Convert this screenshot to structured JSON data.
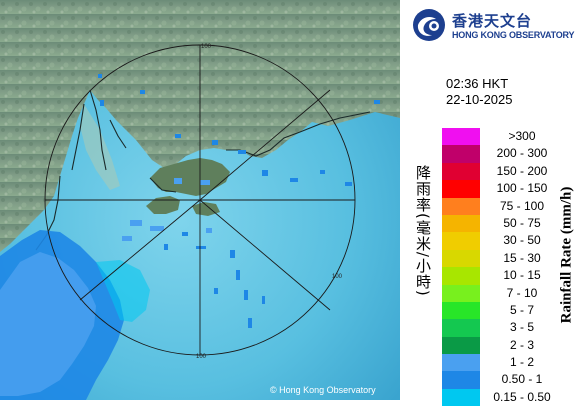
{
  "header": {
    "logo_icon": "hko-logo-icon",
    "org_name_cn": "香港天文台",
    "org_name_en": "HONG KONG OBSERVATORY"
  },
  "time": "02:36 HKT",
  "date": "22-10-2025",
  "legend": {
    "title_cn": "降雨率(毫米/小時)",
    "title_en": "Rainfall Rate (mm/h)",
    "items": [
      {
        "label": ">300",
        "color": "#f00ff0"
      },
      {
        "label": "200 - 300",
        "color": "#c0006a"
      },
      {
        "label": "150 - 200",
        "color": "#e00032"
      },
      {
        "label": "100 - 150",
        "color": "#ff0000"
      },
      {
        "label": "75 - 100",
        "color": "#ff7f1e"
      },
      {
        "label": "50 - 75",
        "color": "#f5b400"
      },
      {
        "label": "30 - 50",
        "color": "#f0cd00"
      },
      {
        "label": "15 - 30",
        "color": "#d8d800"
      },
      {
        "label": "10 - 15",
        "color": "#a8e600"
      },
      {
        "label": "7 - 10",
        "color": "#78f01e"
      },
      {
        "label": "5 - 7",
        "color": "#28e628"
      },
      {
        "label": "3 - 5",
        "color": "#14c850"
      },
      {
        "label": "2 - 3",
        "color": "#0a9a46"
      },
      {
        "label": "1 - 2",
        "color": "#4aa0f0"
      },
      {
        "label": "0.50 - 1",
        "color": "#1e87e6"
      },
      {
        "label": "0.15 - 0.50",
        "color": "#00c8f0"
      }
    ]
  },
  "map": {
    "ring_labels": [
      "100",
      "100",
      "100"
    ],
    "copyright": "© Hong Kong Observatory"
  }
}
